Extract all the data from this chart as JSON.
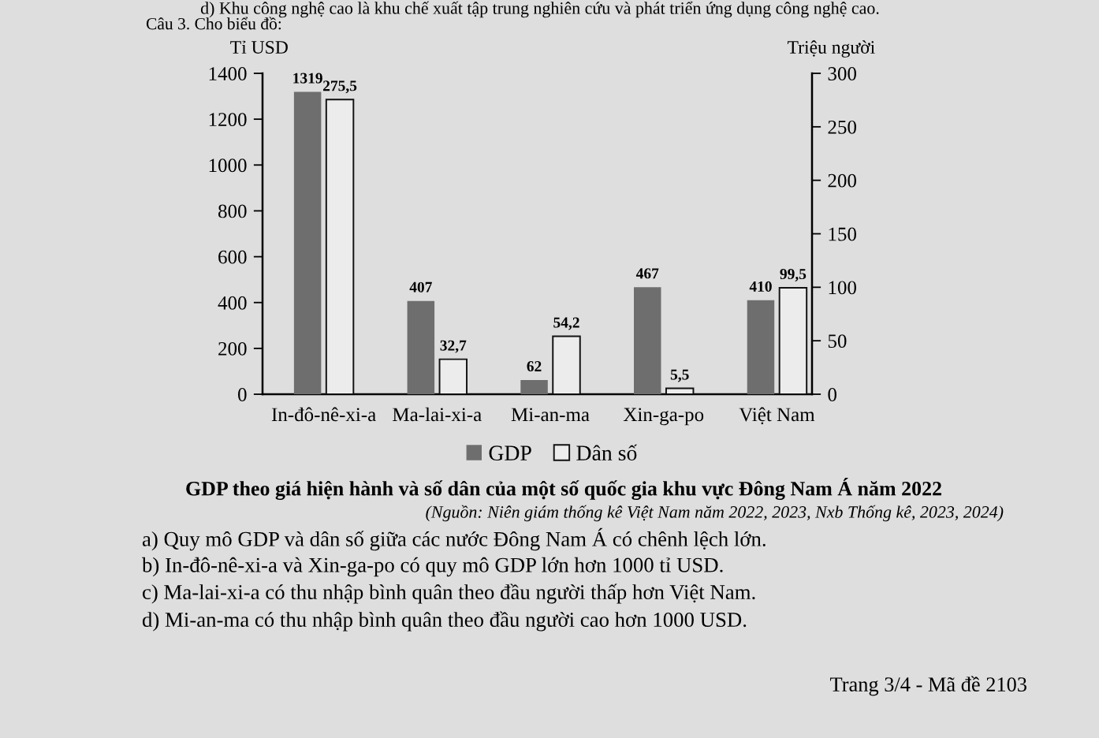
{
  "chart_data": {
    "type": "bar",
    "title": "GDP theo giá hiện hành và số dân của một số quốc gia khu vực Đông Nam Á năm 2022",
    "ylabel": "Tỉ USD",
    "y2label": "Triệu người",
    "categories": [
      "In-đô-nê-xi-a",
      "Ma-lai-xi-a",
      "Mi-an-ma",
      "Xin-ga-po",
      "Việt Nam"
    ],
    "series": [
      {
        "name": "GDP",
        "color": "#6e6e6e",
        "values": [
          1319,
          407,
          62,
          467,
          410
        ],
        "value_labels": [
          "1319",
          "407",
          "62",
          "467",
          "410"
        ]
      },
      {
        "name": "Dân số",
        "color": "#ececec",
        "axis": "y2",
        "values": [
          275.5,
          32.7,
          54.2,
          5.5,
          99.5
        ],
        "value_labels": [
          "275,5",
          "32,7",
          "54,2",
          "5,5",
          "99,5"
        ]
      }
    ],
    "ylim": [
      0,
      1400
    ],
    "yticks": [
      0,
      200,
      400,
      600,
      800,
      1000,
      1200,
      1400
    ],
    "y2lim": [
      0,
      300
    ],
    "y2ticks": [
      0,
      50,
      100,
      150,
      200,
      250,
      300
    ],
    "legend": "bottom",
    "annotations": [
      "d) Khu công nghệ cao là khu chế xuất tập trung nghiên cứu và phát triển ứng dụng công nghệ cao.",
      "Câu 3. Cho biểu đồ:",
      "(Nguồn: Niên giám thống kê Việt Nam năm 2022, 2023, Nxb Thống kê, 2023, 2024)",
      "a) Quy mô GDP và dân số giữa các nước Đông Nam Á có chênh lệch lớn.",
      "b) In-đô-nê-xi-a và Xin-ga-po có quy mô GDP lớn hơn 1000 tỉ USD.",
      "c) Ma-lai-xi-a có thu nhập bình quân theo đầu người thấp hơn Việt Nam.",
      "d) Mi-an-ma có thu nhập bình quân theo đầu người cao hơn 1000 USD.",
      "Trang 3/4 - Mã đề 2103"
    ]
  }
}
